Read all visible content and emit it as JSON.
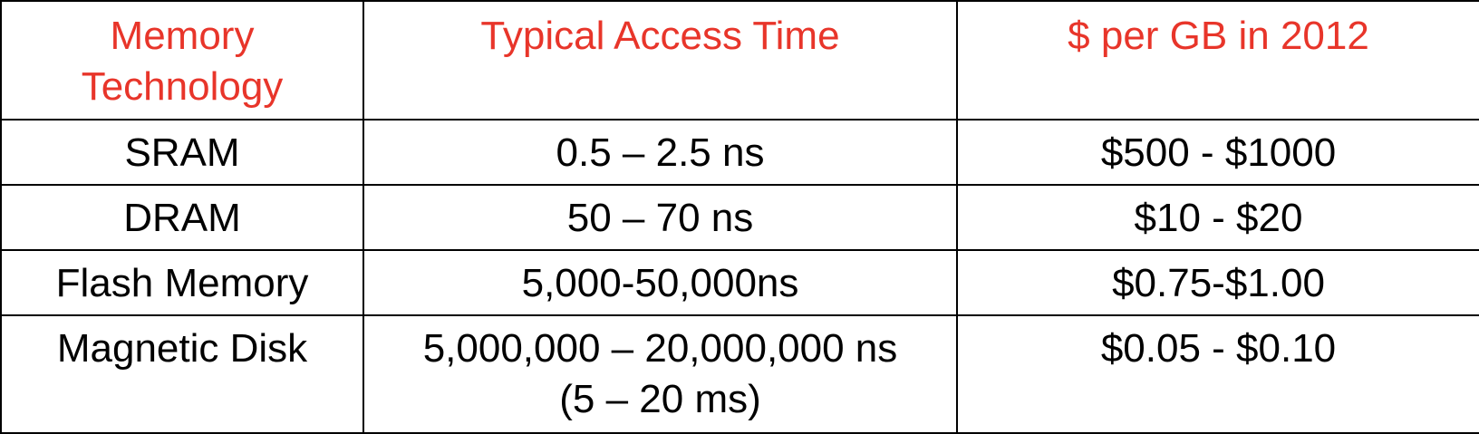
{
  "table": {
    "headers": [
      [
        "Memory",
        "Technology"
      ],
      [
        "Typical Access Time"
      ],
      [
        "$ per GB in 2012"
      ]
    ],
    "rows": [
      {
        "technology": [
          "SRAM"
        ],
        "access_time": [
          "0.5 – 2.5 ns"
        ],
        "cost": [
          "$500 - $1000"
        ]
      },
      {
        "technology": [
          "DRAM"
        ],
        "access_time": [
          "50 – 70 ns"
        ],
        "cost": [
          "$10 - $20"
        ]
      },
      {
        "technology": [
          "Flash Memory"
        ],
        "access_time": [
          "5,000-50,000ns"
        ],
        "cost": [
          "$0.75-$1.00"
        ]
      },
      {
        "technology": [
          "Magnetic Disk"
        ],
        "access_time": [
          "5,000,000 – 20,000,000 ns",
          "(5 – 20 ms)"
        ],
        "cost": [
          "$0.05 - $0.10"
        ]
      }
    ]
  },
  "colors": {
    "header_text": "#e8352a",
    "body_text": "#000000",
    "border": "#000000"
  }
}
